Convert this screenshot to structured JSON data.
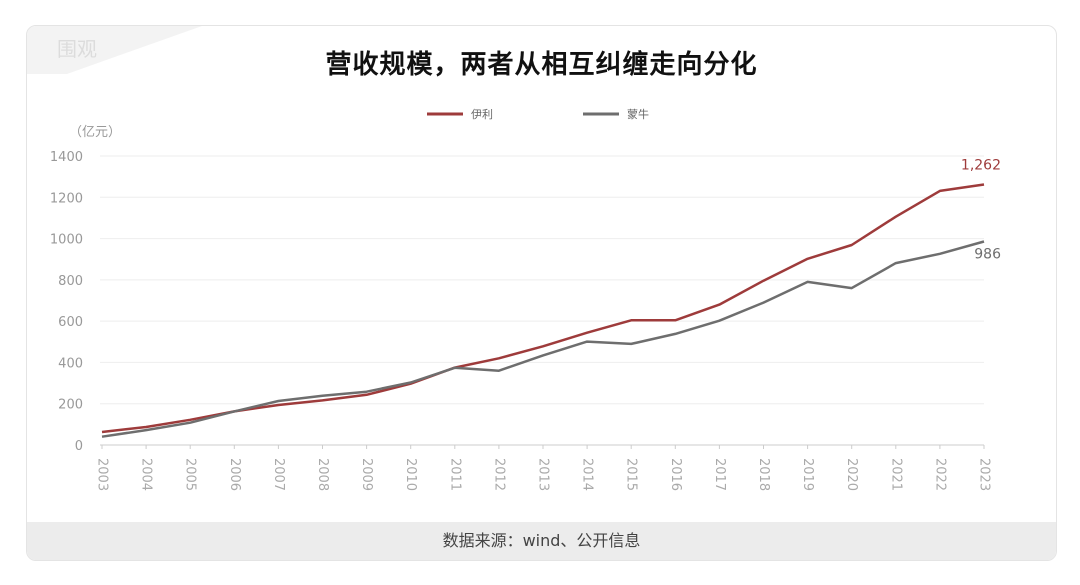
{
  "title": "营收规模，两者从相互纠缠走向分化",
  "source": "数据来源：wind、公开信息",
  "watermark": "围观",
  "colors": {
    "yili": "#9e3b3b",
    "mengniu": "#6e6e6e",
    "grid": "#eeeeee",
    "axis_text": "#999999"
  },
  "chart_data": {
    "type": "line",
    "ylabel": "（亿元）",
    "ylim": [
      0,
      1400
    ],
    "yticks": [
      0,
      200,
      400,
      600,
      800,
      1000,
      1200,
      1400
    ],
    "legend_position": "top-center",
    "categories": [
      "2003",
      "2004",
      "2005",
      "2006",
      "2007",
      "2008",
      "2009",
      "2010",
      "2011",
      "2012",
      "2013",
      "2014",
      "2015",
      "2016",
      "2017",
      "2018",
      "2019",
      "2020",
      "2021",
      "2022",
      "2023"
    ],
    "series": [
      {
        "name": "伊利",
        "color": "#9e3b3b",
        "values": [
          63,
          87,
          122,
          163,
          194,
          216,
          243,
          297,
          375,
          420,
          478,
          544,
          604,
          604,
          680,
          796,
          902,
          969,
          1106,
          1231,
          1262
        ],
        "end_label": "1,262"
      },
      {
        "name": "蒙牛",
        "color": "#6e6e6e",
        "values": [
          40,
          72,
          108,
          163,
          213,
          239,
          258,
          303,
          374,
          360,
          434,
          501,
          490,
          538,
          602,
          690,
          790,
          760,
          881,
          926,
          986
        ],
        "end_label": "986"
      }
    ]
  }
}
